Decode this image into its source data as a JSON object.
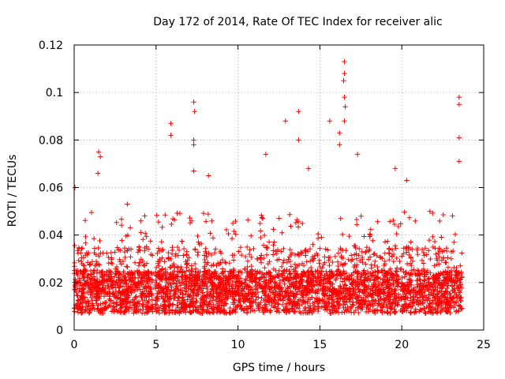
{
  "chart_data": {
    "type": "scatter",
    "title": "Day 172 of 2014, Rate Of TEC Index for receiver alic",
    "xlabel": "GPS time / hours",
    "ylabel": "ROTI / TECUs",
    "xlim": [
      0,
      25
    ],
    "ylim": [
      0,
      0.12
    ],
    "xticks": [
      0,
      5,
      10,
      15,
      20,
      25
    ],
    "yticks": [
      0,
      0.02,
      0.04,
      0.06,
      0.08,
      0.1,
      0.12
    ],
    "xtick_labels": [
      "0",
      "5",
      "10",
      "15",
      "20",
      "25"
    ],
    "ytick_labels": [
      "0",
      "0.02",
      "0.04",
      "0.06",
      "0.08",
      "0.1",
      "0.12"
    ],
    "grid": true,
    "marker": "+",
    "color": "#ff0000",
    "data_gap_hours": [
      4.8,
      4.95
    ],
    "data_range_hours": [
      0,
      23.7
    ],
    "series": [
      {
        "name": "ROTI",
        "notable_points": [
          {
            "x": 0.05,
            "y": 0.06
          },
          {
            "x": 1.5,
            "y": 0.075
          },
          {
            "x": 1.6,
            "y": 0.073
          },
          {
            "x": 1.45,
            "y": 0.066
          },
          {
            "x": 3.25,
            "y": 0.053
          },
          {
            "x": 5.9,
            "y": 0.087
          },
          {
            "x": 5.9,
            "y": 0.082
          },
          {
            "x": 7.3,
            "y": 0.096
          },
          {
            "x": 7.35,
            "y": 0.092
          },
          {
            "x": 7.3,
            "y": 0.08
          },
          {
            "x": 7.3,
            "y": 0.078
          },
          {
            "x": 7.3,
            "y": 0.067
          },
          {
            "x": 8.2,
            "y": 0.065
          },
          {
            "x": 11.7,
            "y": 0.074
          },
          {
            "x": 12.9,
            "y": 0.088
          },
          {
            "x": 13.7,
            "y": 0.092
          },
          {
            "x": 13.7,
            "y": 0.08
          },
          {
            "x": 14.3,
            "y": 0.068
          },
          {
            "x": 15.6,
            "y": 0.088
          },
          {
            "x": 16.5,
            "y": 0.113
          },
          {
            "x": 16.5,
            "y": 0.108
          },
          {
            "x": 16.45,
            "y": 0.105
          },
          {
            "x": 16.5,
            "y": 0.098
          },
          {
            "x": 16.55,
            "y": 0.094
          },
          {
            "x": 16.5,
            "y": 0.088
          },
          {
            "x": 16.2,
            "y": 0.083
          },
          {
            "x": 16.2,
            "y": 0.078
          },
          {
            "x": 17.3,
            "y": 0.074
          },
          {
            "x": 19.6,
            "y": 0.068
          },
          {
            "x": 20.3,
            "y": 0.063
          },
          {
            "x": 23.5,
            "y": 0.098
          },
          {
            "x": 23.5,
            "y": 0.095
          },
          {
            "x": 23.5,
            "y": 0.081
          },
          {
            "x": 23.5,
            "y": 0.071
          }
        ]
      }
    ]
  }
}
